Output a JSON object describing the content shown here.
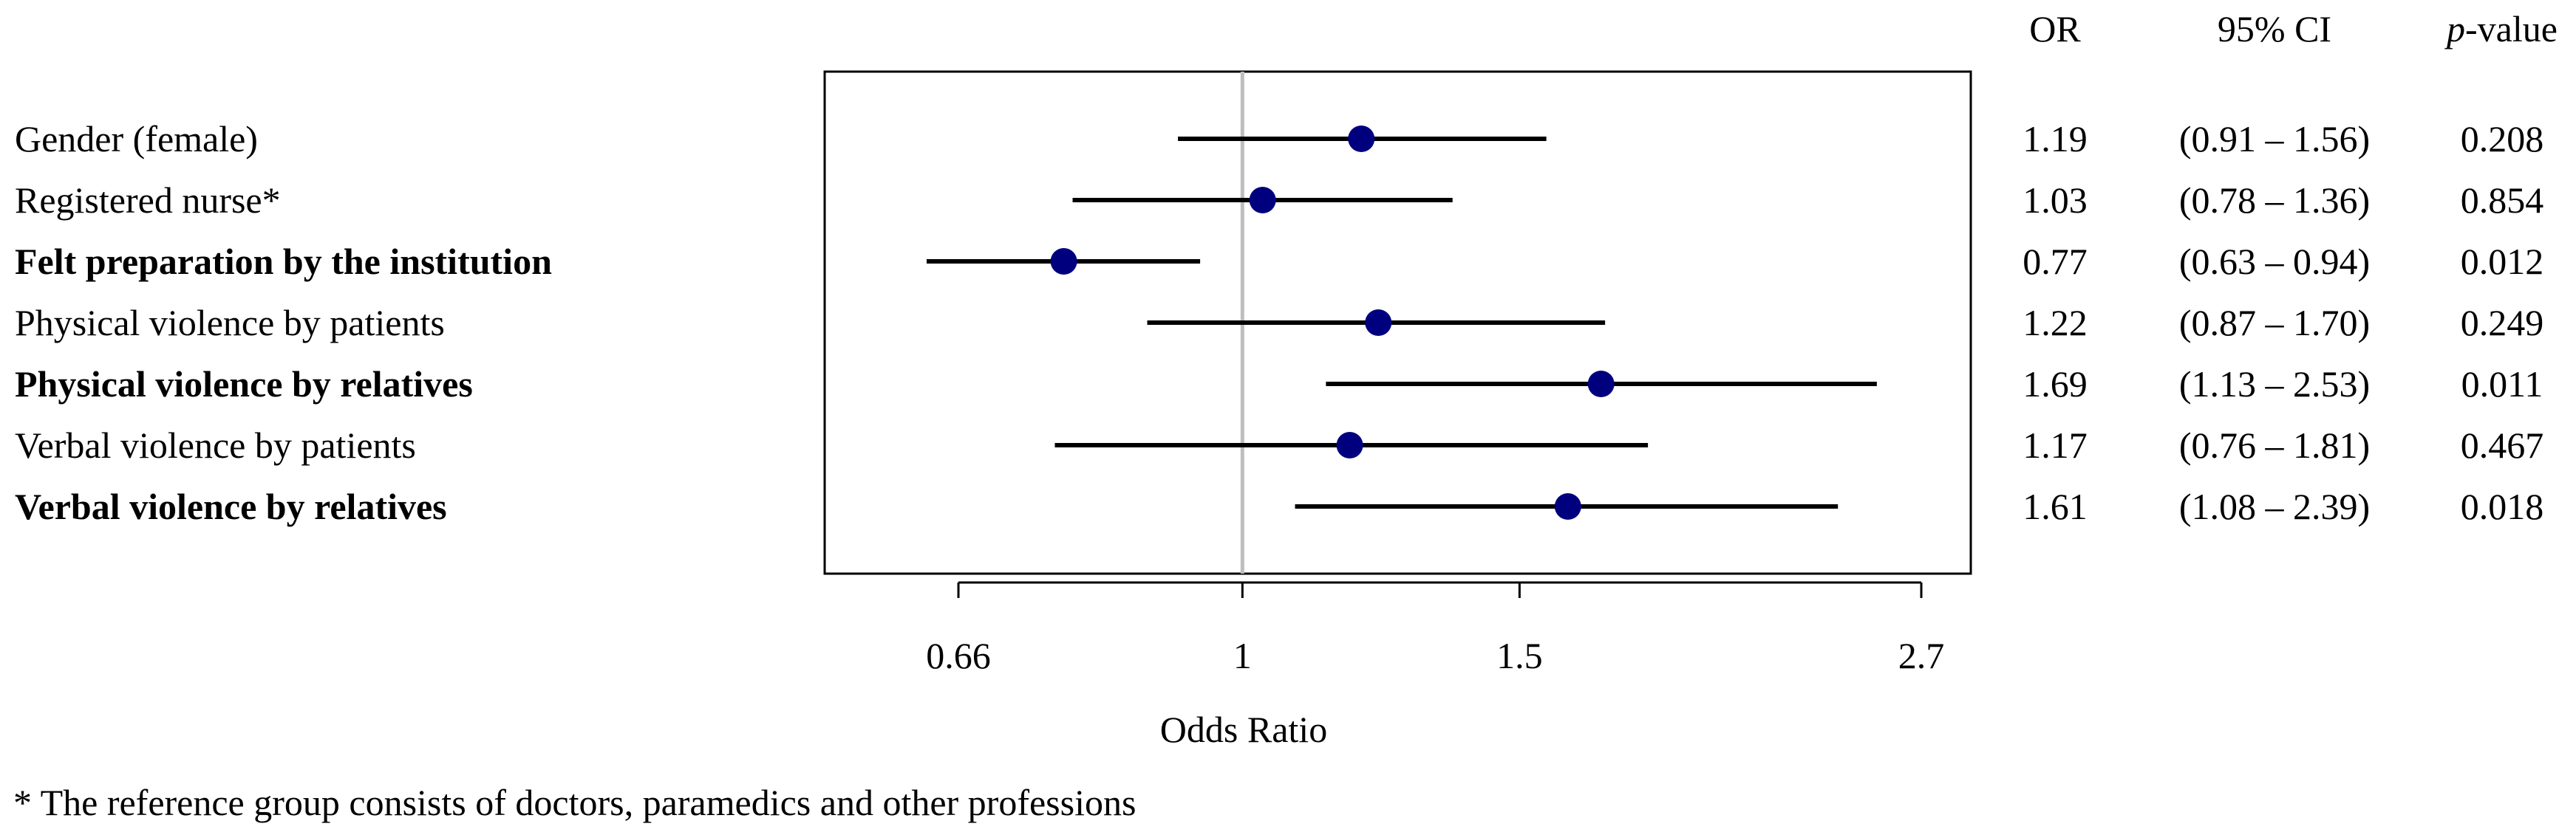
{
  "chart_data": {
    "type": "scatter",
    "subtype": "forest-plot",
    "xlabel": "Odds Ratio",
    "x_scale": "log",
    "xlim": [
      0.6,
      2.8
    ],
    "x_ticks": [
      {
        "value": 0.66,
        "label": "0.66"
      },
      {
        "value": 1,
        "label": "1"
      },
      {
        "value": 1.5,
        "label": "1.5"
      },
      {
        "value": 2.7,
        "label": "2.7"
      }
    ],
    "reference_line": 1,
    "grid": false,
    "marker_color": "#00007f",
    "reference_line_color": "#bebebe",
    "columns": {
      "or": "OR",
      "ci": "95% CI",
      "p_italic": "p",
      "p_rest": "-value"
    },
    "rows": [
      {
        "label": "Gender (female)",
        "bold": false,
        "or": 1.19,
        "lower": 0.91,
        "upper": 1.56,
        "or_text": "1.19",
        "ci_text": "(0.91 – 1.56)",
        "p_text": "0.208"
      },
      {
        "label": "Registered nurse*",
        "bold": false,
        "or": 1.03,
        "lower": 0.78,
        "upper": 1.36,
        "or_text": "1.03",
        "ci_text": "(0.78 – 1.36)",
        "p_text": "0.854"
      },
      {
        "label": "Felt preparation by the institution",
        "bold": true,
        "or": 0.77,
        "lower": 0.63,
        "upper": 0.94,
        "or_text": "0.77",
        "ci_text": "(0.63 – 0.94)",
        "p_text": "0.012"
      },
      {
        "label": "Physical violence by patients",
        "bold": false,
        "or": 1.22,
        "lower": 0.87,
        "upper": 1.7,
        "or_text": "1.22",
        "ci_text": "(0.87 – 1.70)",
        "p_text": "0.249"
      },
      {
        "label": "Physical violence by relatives",
        "bold": true,
        "or": 1.69,
        "lower": 1.13,
        "upper": 2.53,
        "or_text": "1.69",
        "ci_text": "(1.13 – 2.53)",
        "p_text": "0.011"
      },
      {
        "label": "Verbal violence by patients",
        "bold": false,
        "or": 1.17,
        "lower": 0.76,
        "upper": 1.81,
        "or_text": "1.17",
        "ci_text": "(0.76 – 1.81)",
        "p_text": "0.467"
      },
      {
        "label": "Verbal violence by relatives",
        "bold": true,
        "or": 1.61,
        "lower": 1.08,
        "upper": 2.39,
        "or_text": "1.61",
        "ci_text": "(1.08 – 2.39)",
        "p_text": "0.018"
      }
    ],
    "footnote": "* The reference group consists of doctors, paramedics and other professions"
  }
}
